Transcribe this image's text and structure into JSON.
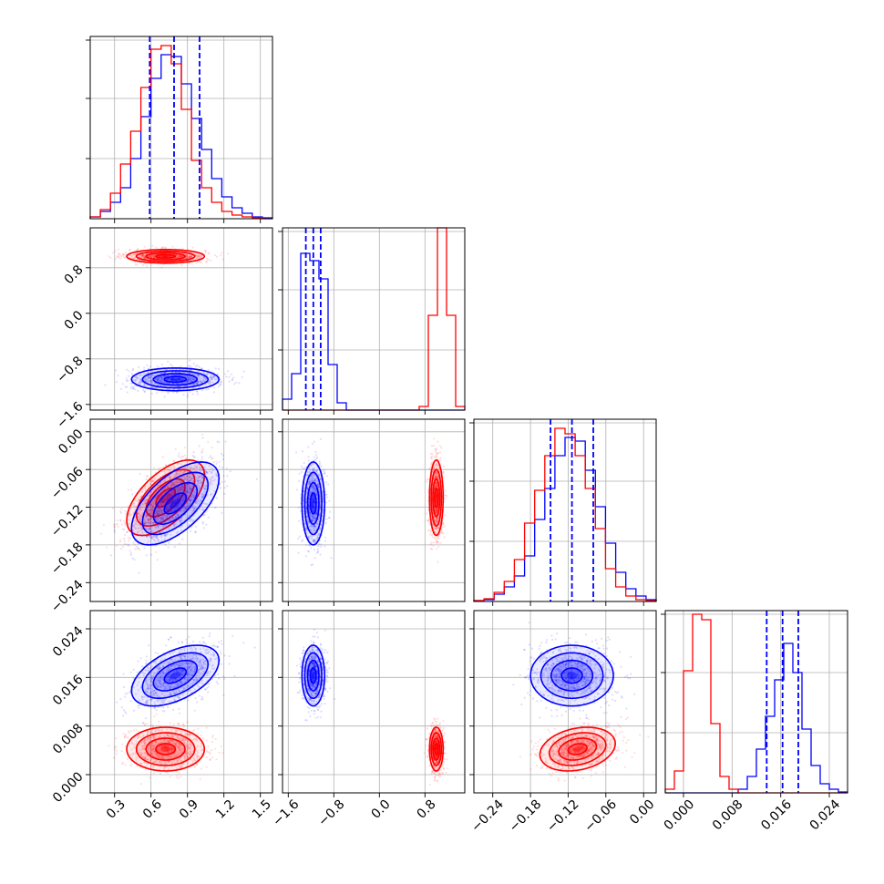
{
  "chart_data": {
    "type": "corner",
    "series_colors": {
      "red": "#ff0000",
      "blue": "#0000ff"
    },
    "grid": true,
    "parameters": [
      {
        "index": 0,
        "range": [
          0.1,
          1.6
        ],
        "ticks": [
          0.3,
          0.6,
          0.9,
          1.2,
          1.5
        ],
        "tick_labels": [
          "0.3",
          "0.6",
          "0.9",
          "1.2",
          "1.5"
        ]
      },
      {
        "index": 1,
        "range": [
          -1.7,
          1.5
        ],
        "ticks": [
          -1.6,
          -0.8,
          0.0,
          0.8
        ],
        "tick_labels": [
          "−1.6",
          "−0.8",
          "0.0",
          "0.8"
        ]
      },
      {
        "index": 2,
        "range": [
          -0.27,
          0.02
        ],
        "ticks": [
          -0.24,
          -0.18,
          -0.12,
          -0.06,
          0.0
        ],
        "tick_labels": [
          "−0.24",
          "−0.18",
          "−0.12",
          "−0.06",
          "0.00"
        ]
      },
      {
        "index": 3,
        "range": [
          -0.003,
          0.027
        ],
        "ticks": [
          0.0,
          0.008,
          0.016,
          0.024
        ],
        "tick_labels": [
          "0.000",
          "0.008",
          "0.016",
          "0.024"
        ]
      }
    ],
    "marginals": [
      {
        "param": 0,
        "blue_hist": [
          0.01,
          0.04,
          0.09,
          0.17,
          0.33,
          0.56,
          0.77,
          0.9,
          0.89,
          0.74,
          0.55,
          0.38,
          0.22,
          0.12,
          0.06,
          0.03,
          0.01,
          0.005
        ],
        "red_hist": [
          0.01,
          0.05,
          0.14,
          0.3,
          0.48,
          0.72,
          0.93,
          0.95,
          0.85,
          0.6,
          0.32,
          0.17,
          0.09,
          0.04,
          0.02,
          0.01,
          0.005,
          0.0
        ],
        "quantiles": [
          0.59,
          0.79,
          1.0
        ]
      },
      {
        "param": 1,
        "blue_hist": [
          0.06,
          0.2,
          0.86,
          0.82,
          0.72,
          0.25,
          0.04,
          0,
          0,
          0,
          0,
          0,
          0,
          0,
          0,
          0,
          0,
          0,
          0,
          0
        ],
        "red_hist": [
          0,
          0,
          0,
          0,
          0,
          0,
          0,
          0,
          0,
          0,
          0,
          0,
          0,
          0,
          0,
          0.02,
          0.52,
          1.0,
          0.52,
          0.02
        ],
        "quantiles": [
          -1.29,
          -1.16,
          -1.03
        ]
      },
      {
        "param": 2,
        "blue_hist": [
          0.005,
          0.01,
          0.04,
          0.08,
          0.14,
          0.25,
          0.45,
          0.62,
          0.8,
          0.9,
          0.88,
          0.72,
          0.52,
          0.32,
          0.16,
          0.07,
          0.03,
          0.01
        ],
        "red_hist": [
          0.005,
          0.015,
          0.05,
          0.11,
          0.23,
          0.43,
          0.61,
          0.8,
          0.95,
          0.92,
          0.8,
          0.62,
          0.4,
          0.18,
          0.08,
          0.03,
          0.01,
          0.005
        ],
        "quantiles": [
          -0.148,
          -0.114,
          -0.08
        ]
      },
      {
        "param": 3,
        "blue_hist": [
          0,
          0,
          0,
          0,
          0,
          0,
          0,
          0,
          0.02,
          0.09,
          0.24,
          0.42,
          0.62,
          0.82,
          0.66,
          0.35,
          0.15,
          0.05,
          0.02,
          0.005
        ],
        "red_hist": [
          0.02,
          0.12,
          0.67,
          0.98,
          0.95,
          0.38,
          0.09,
          0.02,
          0,
          0,
          0,
          0,
          0,
          0,
          0,
          0,
          0,
          0,
          0,
          0
        ],
        "quantiles": [
          0.0137,
          0.0163,
          0.0189
        ]
      }
    ],
    "posterior_blue": {
      "mean": [
        0.8,
        -1.16,
        -0.114,
        0.0163
      ],
      "sd": [
        0.18,
        0.1,
        0.033,
        0.0025
      ],
      "corr": [
        [
          1,
          0,
          0.6,
          0.5
        ],
        [
          0,
          1,
          0,
          0
        ],
        [
          0.6,
          0,
          1,
          0
        ],
        [
          0.5,
          0,
          0,
          1
        ]
      ]
    },
    "posterior_red": {
      "mean": [
        0.72,
        1.0,
        -0.105,
        0.0042
      ],
      "sd": [
        0.16,
        0.06,
        0.03,
        0.0018
      ],
      "corr": [
        [
          1,
          0,
          0.6,
          0
        ],
        [
          0,
          1,
          0,
          0
        ],
        [
          0.6,
          0,
          1,
          0.25
        ],
        [
          0,
          0,
          0.25,
          1
        ]
      ]
    }
  }
}
